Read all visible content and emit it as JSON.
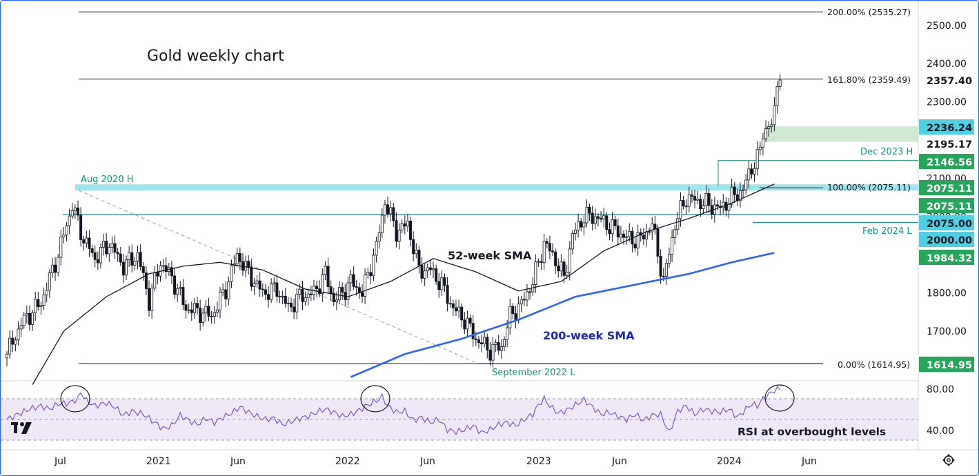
{
  "chart_data": {
    "type": "candlestick",
    "title": "Gold weekly chart",
    "price_axis": {
      "ticks": [
        "2500.00",
        "2400.00",
        "2300.00",
        "2100.00",
        "2000.00",
        "1800.00",
        "1700.00"
      ],
      "ylim": [
        1580,
        2560
      ]
    },
    "rsi_axis": {
      "ticks": [
        "80.00",
        "40.00"
      ],
      "ylim": [
        25,
        90
      ],
      "overbought": 70,
      "oversold": 30
    },
    "time_axis": {
      "ticks": [
        "Jul",
        "2021",
        "Jun",
        "2022",
        "Jun",
        "2023",
        "Jun",
        "2024",
        "Jun"
      ]
    },
    "fib_levels": [
      {
        "label": "200.00% (2535.27)",
        "value": 2535.27
      },
      {
        "label": "161.80% (2359.49)",
        "value": 2359.49
      },
      {
        "label": "100.00% (2075.11)",
        "value": 2075.11
      },
      {
        "label": "0.00% (1614.95)",
        "value": 1614.95
      }
    ],
    "annotations": {
      "aug2020": "Aug 2020 H",
      "dec2023": "Dec 2023 H",
      "feb2024": "Feb 2024 L",
      "sep2022": "September 2022 L",
      "sma52": "52-week SMA",
      "sma200": "200-week SMA",
      "rsi_note": "RSI at overbought levels"
    },
    "price_tags": [
      {
        "text": "2357.40",
        "value": 2357.4,
        "style": "plain"
      },
      {
        "text": "2236.24",
        "value": 2236.24,
        "style": "teal"
      },
      {
        "text": "2195.17",
        "value": 2195.17,
        "style": "white"
      },
      {
        "text": "2146.56",
        "value": 2146.56,
        "style": "green"
      },
      {
        "text": "2075.11",
        "value": 2075.11,
        "style": "green"
      },
      {
        "text": "2075.11",
        "value": 2075.11,
        "style": "green"
      },
      {
        "text": "2075.00",
        "value": 2075.0,
        "style": "teal"
      },
      {
        "text": "2000.00",
        "value": 2000.0,
        "style": "teal"
      },
      {
        "text": "1984.32",
        "value": 1984.32,
        "style": "green"
      },
      {
        "text": "1614.95",
        "value": 1614.95,
        "style": "green"
      }
    ],
    "close_anchors": [
      [
        0,
        1640
      ],
      [
        5,
        1720
      ],
      [
        12,
        1775
      ],
      [
        18,
        1900
      ],
      [
        23,
        2030
      ],
      [
        27,
        1940
      ],
      [
        31,
        1890
      ],
      [
        36,
        1930
      ],
      [
        41,
        1870
      ],
      [
        46,
        1900
      ],
      [
        50,
        1780
      ],
      [
        54,
        1880
      ],
      [
        58,
        1840
      ],
      [
        63,
        1760
      ],
      [
        68,
        1750
      ],
      [
        72,
        1740
      ],
      [
        77,
        1810
      ],
      [
        81,
        1900
      ],
      [
        86,
        1840
      ],
      [
        90,
        1800
      ],
      [
        95,
        1810
      ],
      [
        99,
        1760
      ],
      [
        103,
        1790
      ],
      [
        108,
        1800
      ],
      [
        112,
        1850
      ],
      [
        115,
        1780
      ],
      [
        118,
        1800
      ],
      [
        121,
        1830
      ],
      [
        125,
        1800
      ],
      [
        130,
        1920
      ],
      [
        133,
        2040
      ],
      [
        137,
        1960
      ],
      [
        141,
        1980
      ],
      [
        145,
        1860
      ],
      [
        149,
        1860
      ],
      [
        153,
        1820
      ],
      [
        157,
        1760
      ],
      [
        161,
        1730
      ],
      [
        165,
        1680
      ],
      [
        170,
        1650
      ],
      [
        174,
        1660
      ],
      [
        177,
        1740
      ],
      [
        181,
        1770
      ],
      [
        185,
        1830
      ],
      [
        189,
        1930
      ],
      [
        192,
        1900
      ],
      [
        196,
        1840
      ],
      [
        199,
        1950
      ],
      [
        203,
        2000
      ],
      [
        207,
        2000
      ],
      [
        211,
        1980
      ],
      [
        215,
        1960
      ],
      [
        219,
        1940
      ],
      [
        223,
        1940
      ],
      [
        227,
        1980
      ],
      [
        231,
        1830
      ],
      [
        235,
        1980
      ],
      [
        239,
        2050
      ],
      [
        243,
        2040
      ],
      [
        247,
        2030
      ],
      [
        251,
        2020
      ],
      [
        255,
        2050
      ],
      [
        259,
        2070
      ],
      [
        262,
        2130
      ],
      [
        264,
        2150
      ],
      [
        267,
        2230
      ],
      [
        269,
        2240
      ],
      [
        271,
        2340
      ],
      [
        272,
        2357
      ]
    ],
    "sma52_anchors": [
      [
        9,
        1560
      ],
      [
        20,
        1700
      ],
      [
        35,
        1790
      ],
      [
        50,
        1850
      ],
      [
        62,
        1870
      ],
      [
        75,
        1880
      ],
      [
        90,
        1860
      ],
      [
        105,
        1810
      ],
      [
        120,
        1790
      ],
      [
        135,
        1830
      ],
      [
        150,
        1890
      ],
      [
        165,
        1855
      ],
      [
        180,
        1805
      ],
      [
        195,
        1830
      ],
      [
        210,
        1910
      ],
      [
        225,
        1960
      ],
      [
        240,
        1995
      ],
      [
        255,
        2035
      ],
      [
        270,
        2085
      ]
    ],
    "sma200_anchors": [
      [
        121,
        1580
      ],
      [
        140,
        1640
      ],
      [
        160,
        1680
      ],
      [
        180,
        1730
      ],
      [
        200,
        1790
      ],
      [
        220,
        1820
      ],
      [
        240,
        1850
      ],
      [
        255,
        1880
      ],
      [
        270,
        1905
      ]
    ],
    "rsi_anchors": [
      [
        0,
        50
      ],
      [
        4,
        55
      ],
      [
        8,
        60
      ],
      [
        12,
        63
      ],
      [
        15,
        60
      ],
      [
        18,
        65
      ],
      [
        22,
        66
      ],
      [
        25,
        70
      ],
      [
        26,
        76
      ],
      [
        28,
        68
      ],
      [
        31,
        63
      ],
      [
        35,
        66
      ],
      [
        38,
        62
      ],
      [
        41,
        54
      ],
      [
        44,
        58
      ],
      [
        48,
        55
      ],
      [
        52,
        47
      ],
      [
        55,
        41
      ],
      [
        58,
        44
      ],
      [
        61,
        54
      ],
      [
        64,
        49
      ],
      [
        67,
        45
      ],
      [
        70,
        51
      ],
      [
        73,
        47
      ],
      [
        76,
        52
      ],
      [
        79,
        56
      ],
      [
        82,
        62
      ],
      [
        85,
        57
      ],
      [
        88,
        53
      ],
      [
        91,
        50
      ],
      [
        94,
        51
      ],
      [
        97,
        45
      ],
      [
        100,
        48
      ],
      [
        103,
        51
      ],
      [
        106,
        53
      ],
      [
        109,
        57
      ],
      [
        112,
        60
      ],
      [
        115,
        57
      ],
      [
        118,
        53
      ],
      [
        121,
        55
      ],
      [
        124,
        59
      ],
      [
        127,
        64
      ],
      [
        130,
        68
      ],
      [
        132,
        72
      ],
      [
        134,
        63
      ],
      [
        137,
        57
      ],
      [
        140,
        58
      ],
      [
        143,
        49
      ],
      [
        146,
        52
      ],
      [
        149,
        47
      ],
      [
        152,
        50
      ],
      [
        155,
        40
      ],
      [
        158,
        38
      ],
      [
        161,
        40
      ],
      [
        164,
        44
      ],
      [
        167,
        37
      ],
      [
        170,
        40
      ],
      [
        173,
        45
      ],
      [
        176,
        47
      ],
      [
        179,
        44
      ],
      [
        182,
        50
      ],
      [
        185,
        55
      ],
      [
        187,
        64
      ],
      [
        189,
        70
      ],
      [
        191,
        63
      ],
      [
        194,
        56
      ],
      [
        197,
        59
      ],
      [
        200,
        64
      ],
      [
        203,
        69
      ],
      [
        206,
        62
      ],
      [
        209,
        55
      ],
      [
        212,
        57
      ],
      [
        215,
        53
      ],
      [
        218,
        50
      ],
      [
        221,
        55
      ],
      [
        224,
        49
      ],
      [
        227,
        54
      ],
      [
        230,
        55
      ],
      [
        233,
        37
      ],
      [
        236,
        58
      ],
      [
        239,
        63
      ],
      [
        242,
        55
      ],
      [
        245,
        60
      ],
      [
        248,
        58
      ],
      [
        251,
        57
      ],
      [
        254,
        60
      ],
      [
        257,
        52
      ],
      [
        260,
        60
      ],
      [
        262,
        65
      ],
      [
        264,
        63
      ],
      [
        266,
        70
      ],
      [
        268,
        74
      ],
      [
        270,
        78
      ],
      [
        272,
        80
      ]
    ]
  },
  "logo": "TV"
}
